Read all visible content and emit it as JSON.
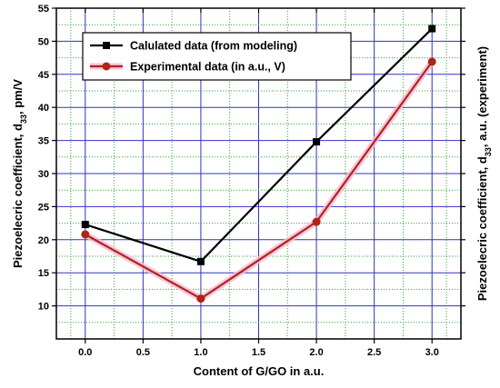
{
  "chart_data": {
    "type": "line",
    "xlabel": "Content of G/GO in a.u.",
    "ylabel_left": {
      "main": "Piezoelecric coefficient, d",
      "sub": "33",
      "tail": ", pm/V"
    },
    "ylabel_right": {
      "main": "Piezoelecric coefficient, d",
      "sub": "33",
      "tail": ", a.u. (experiment)"
    },
    "xlim": [
      -0.25,
      3.25
    ],
    "ylim": [
      5,
      55
    ],
    "xticks": [
      "0.0",
      "0.5",
      "1.0",
      "1.5",
      "2.0",
      "2.5",
      "3.0"
    ],
    "yticks": [
      "10",
      "15",
      "20",
      "25",
      "30",
      "35",
      "40",
      "45",
      "50",
      "55"
    ],
    "grid": true,
    "legend_position": "top-left",
    "series": [
      {
        "name": "Calulated data (from modeling)",
        "color": "#000000",
        "marker": "square",
        "x": [
          0,
          1,
          2,
          3
        ],
        "y": [
          22.3,
          16.7,
          34.8,
          51.9
        ]
      },
      {
        "name": "Experimental data (in a.u., V)",
        "color": "#b02418",
        "marker": "circle",
        "x": [
          0,
          1,
          2,
          3
        ],
        "y": [
          20.8,
          11.1,
          22.7,
          46.9
        ]
      }
    ]
  }
}
